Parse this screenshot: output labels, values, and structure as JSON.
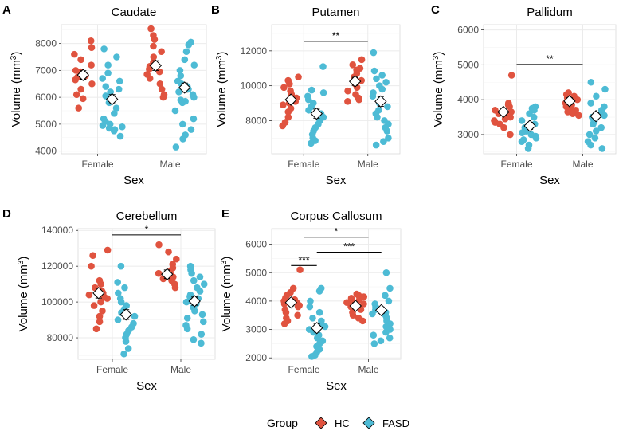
{
  "figure": {
    "legend": {
      "title": "Group",
      "entries": [
        {
          "label": "HC",
          "color": "#E0533F"
        },
        {
          "label": "FASD",
          "color": "#4DBBD5"
        }
      ]
    },
    "colors": {
      "HC": "#E0533F",
      "FASD": "#4DBBD5",
      "grid": "#EBEBEB",
      "axis_text": "#4D4D4D"
    }
  },
  "chart_data": [
    {
      "panel": "A",
      "title": "Caudate",
      "type": "scatter",
      "xlabel": "Sex",
      "ylabel": "Volume (mm",
      "ylabel_sup": "3",
      "ylabel_close": ")",
      "categories": [
        "Female",
        "Male"
      ],
      "groups": [
        "HC",
        "FASD"
      ],
      "ylim": [
        3900,
        8700
      ],
      "yticks": [
        4000,
        5000,
        6000,
        7000,
        8000
      ],
      "ytick_labels": [
        "4000",
        "5000",
        "6000",
        "7000",
        "8000"
      ],
      "series": [
        {
          "sex": "Female",
          "group": "HC",
          "mean": 6830,
          "se": 160,
          "values": [
            8100,
            7850,
            7600,
            7400,
            7200,
            7000,
            6950,
            6850,
            6800,
            6750,
            6650,
            6500,
            6300,
            6100,
            5950,
            5600
          ]
        },
        {
          "sex": "Female",
          "group": "FASD",
          "mean": 5930,
          "se": 170,
          "values": [
            7800,
            7500,
            7200,
            6900,
            6700,
            6600,
            6400,
            6300,
            6200,
            6050,
            5950,
            5800,
            5600,
            5400,
            5200,
            5100,
            5000,
            4950,
            4900,
            4850,
            4800,
            4750,
            4550
          ]
        },
        {
          "sex": "Male",
          "group": "HC",
          "mean": 7180,
          "se": 180,
          "values": [
            8550,
            8300,
            8150,
            7900,
            7700,
            7500,
            7300,
            7150,
            7050,
            6950,
            6850,
            6700,
            6500,
            6300,
            6100,
            6000
          ]
        },
        {
          "sex": "Male",
          "group": "FASD",
          "mean": 6360,
          "se": 170,
          "values": [
            8050,
            7950,
            7700,
            7400,
            7200,
            7000,
            6800,
            6600,
            6500,
            6400,
            6300,
            6200,
            6100,
            6000,
            5900,
            5850,
            5800,
            5500,
            5200,
            5000,
            4800,
            4600,
            4450,
            4150
          ]
        }
      ],
      "significance": []
    },
    {
      "panel": "B",
      "title": "Putamen",
      "type": "scatter",
      "xlabel": "Sex",
      "ylabel": "Volume (mm",
      "ylabel_sup": "3",
      "ylabel_close": ")",
      "categories": [
        "Female",
        "Male"
      ],
      "groups": [
        "HC",
        "FASD"
      ],
      "ylim": [
        6100,
        13500
      ],
      "yticks": [
        8000,
        10000,
        12000
      ],
      "ytick_labels": [
        "8000",
        "10000",
        "12000"
      ],
      "series": [
        {
          "sex": "Female",
          "group": "HC",
          "mean": 9200,
          "se": 220,
          "values": [
            10500,
            10300,
            10100,
            9900,
            9700,
            9500,
            9300,
            9200,
            9100,
            9000,
            8900,
            8700,
            8500,
            8200,
            7900,
            7700
          ]
        },
        {
          "sex": "Female",
          "group": "FASD",
          "mean": 8400,
          "se": 260,
          "values": [
            11100,
            9750,
            9600,
            9400,
            9200,
            9000,
            8800,
            8600,
            8400,
            8200,
            8000,
            7800,
            7600,
            7400,
            7200,
            7000,
            6850,
            6700
          ]
        },
        {
          "sex": "Male",
          "group": "HC",
          "mean": 10250,
          "se": 230,
          "values": [
            11500,
            11200,
            11000,
            10900,
            10700,
            10500,
            10300,
            10100,
            9900,
            9700,
            9500,
            9300,
            9200,
            9100
          ]
        },
        {
          "sex": "Male",
          "group": "FASD",
          "mean": 9100,
          "se": 280,
          "values": [
            11900,
            10850,
            10600,
            10400,
            10200,
            10000,
            9800,
            9600,
            9400,
            9200,
            9000,
            8800,
            8600,
            8400,
            8200,
            8000,
            7800,
            7600,
            7400,
            7000,
            6800,
            6600
          ]
        }
      ],
      "significance": [
        {
          "label": "**",
          "from": "Female",
          "to": "Male",
          "y": 12550
        }
      ]
    },
    {
      "panel": "C",
      "title": "Pallidum",
      "type": "scatter",
      "xlabel": "Sex",
      "ylabel": "Volume (mm",
      "ylabel_sup": "3",
      "ylabel_close": ")",
      "categories": [
        "Female",
        "Male"
      ],
      "groups": [
        "HC",
        "FASD"
      ],
      "ylim": [
        2450,
        6150
      ],
      "yticks": [
        3000,
        4000,
        5000,
        6000
      ],
      "ytick_labels": [
        "3000",
        "4000",
        "5000",
        "6000"
      ],
      "series": [
        {
          "sex": "Female",
          "group": "HC",
          "mean": 3650,
          "se": 110,
          "values": [
            4700,
            3900,
            3850,
            3800,
            3700,
            3650,
            3600,
            3550,
            3500,
            3450,
            3400,
            3350,
            3300,
            3200,
            3000
          ]
        },
        {
          "sex": "Female",
          "group": "FASD",
          "mean": 3250,
          "se": 100,
          "values": [
            3800,
            3750,
            3700,
            3600,
            3500,
            3400,
            3300,
            3200,
            3100,
            3050,
            3000,
            2950,
            2900,
            2850,
            2800,
            2700,
            2600
          ]
        },
        {
          "sex": "Male",
          "group": "HC",
          "mean": 3960,
          "se": 95,
          "values": [
            4200,
            4150,
            4100,
            4050,
            4000,
            3950,
            3900,
            3850,
            3800,
            3750,
            3700,
            3650,
            3600,
            3550
          ]
        },
        {
          "sex": "Male",
          "group": "FASD",
          "mean": 3530,
          "se": 110,
          "values": [
            4500,
            4300,
            4100,
            3900,
            3800,
            3700,
            3600,
            3550,
            3500,
            3450,
            3400,
            3350,
            3300,
            3200,
            3100,
            3000,
            2900,
            2800,
            2700,
            2600
          ]
        }
      ],
      "significance": [
        {
          "label": "**",
          "from": "Female",
          "to": "Male",
          "y": 5010
        }
      ]
    },
    {
      "panel": "D",
      "title": "Cerebellum",
      "type": "scatter",
      "xlabel": "Sex",
      "ylabel": "Volume (mm",
      "ylabel_sup": "3",
      "ylabel_close": ")",
      "categories": [
        "Female",
        "Male"
      ],
      "groups": [
        "HC",
        "FASD"
      ],
      "ylim": [
        68000,
        141000
      ],
      "yticks": [
        80000,
        100000,
        120000,
        140000
      ],
      "ytick_labels": [
        "80000",
        "100000",
        "120000",
        "140000"
      ],
      "series": [
        {
          "sex": "Female",
          "group": "HC",
          "mean": 105000,
          "se": 2800,
          "values": [
            129000,
            126000,
            120000,
            112000,
            110000,
            108000,
            106000,
            105000,
            104000,
            103000,
            102000,
            100000,
            98000,
            95000,
            92000,
            89000,
            85000
          ]
        },
        {
          "sex": "Female",
          "group": "FASD",
          "mean": 93000,
          "se": 2700,
          "values": [
            120000,
            111000,
            108000,
            105000,
            102000,
            100000,
            98000,
            96000,
            94000,
            92000,
            90000,
            88000,
            86000,
            84000,
            82000,
            80000,
            78000,
            74000,
            71000
          ]
        },
        {
          "sex": "Male",
          "group": "HC",
          "mean": 115500,
          "se": 2400,
          "values": [
            132000,
            128000,
            124000,
            121000,
            119000,
            117000,
            116000,
            115000,
            114000,
            113000,
            112000,
            110000,
            108000
          ]
        },
        {
          "sex": "Male",
          "group": "FASD",
          "mean": 100500,
          "se": 2300,
          "values": [
            120000,
            118000,
            116000,
            114000,
            112000,
            110000,
            108000,
            106000,
            104000,
            103000,
            102000,
            101000,
            100000,
            99000,
            97000,
            95000,
            93000,
            91000,
            89000,
            87000,
            85000,
            82000,
            79000,
            77000
          ]
        }
      ],
      "significance": [
        {
          "label": "*",
          "from": "Female",
          "to": "Male",
          "y": 137500
        }
      ]
    },
    {
      "panel": "E",
      "title": "Corpus Callosum",
      "type": "scatter",
      "xlabel": "Sex",
      "ylabel": "Volume (mm",
      "ylabel_sup": "3",
      "ylabel_close": ")",
      "categories": [
        "Female",
        "Male"
      ],
      "groups": [
        "HC",
        "FASD"
      ],
      "ylim": [
        1950,
        6550
      ],
      "yticks": [
        2000,
        3000,
        4000,
        5000,
        6000
      ],
      "ytick_labels": [
        "2000",
        "3000",
        "4000",
        "5000",
        "6000"
      ],
      "series": [
        {
          "sex": "Female",
          "group": "HC",
          "mean": 3950,
          "se": 120,
          "values": [
            5100,
            4450,
            4300,
            4200,
            4100,
            4050,
            4000,
            3950,
            3900,
            3850,
            3800,
            3700,
            3600,
            3500,
            3400,
            3300,
            3200
          ]
        },
        {
          "sex": "Female",
          "group": "FASD",
          "mean": 3050,
          "se": 140,
          "values": [
            4450,
            4350,
            4000,
            3800,
            3600,
            3400,
            3300,
            3200,
            3100,
            3000,
            2900,
            2800,
            2700,
            2600,
            2500,
            2400,
            2300,
            2200,
            2100,
            2050
          ]
        },
        {
          "sex": "Male",
          "group": "HC",
          "mean": 3830,
          "se": 110,
          "values": [
            4250,
            4200,
            4150,
            4100,
            4050,
            4000,
            3950,
            3900,
            3850,
            3800,
            3700,
            3600,
            3500,
            3400,
            3300
          ]
        },
        {
          "sex": "Male",
          "group": "FASD",
          "mean": 3680,
          "se": 110,
          "values": [
            5000,
            4450,
            4200,
            4000,
            3900,
            3800,
            3700,
            3650,
            3600,
            3550,
            3500,
            3400,
            3300,
            3200,
            3100,
            3000,
            2900,
            2800,
            2700,
            2600,
            2500
          ]
        }
      ],
      "significance": [
        {
          "label": "***",
          "from": "Female",
          "fromGroup": "HC",
          "to": "Female",
          "toGroup": "FASD",
          "y": 5250
        },
        {
          "label": "***",
          "from": "Female",
          "fromGroup": "FASD",
          "to": "Male",
          "toGroup": "FASD",
          "y": 5720
        },
        {
          "label": "*",
          "from": "Female",
          "to": "Male",
          "y": 6250
        }
      ]
    }
  ]
}
